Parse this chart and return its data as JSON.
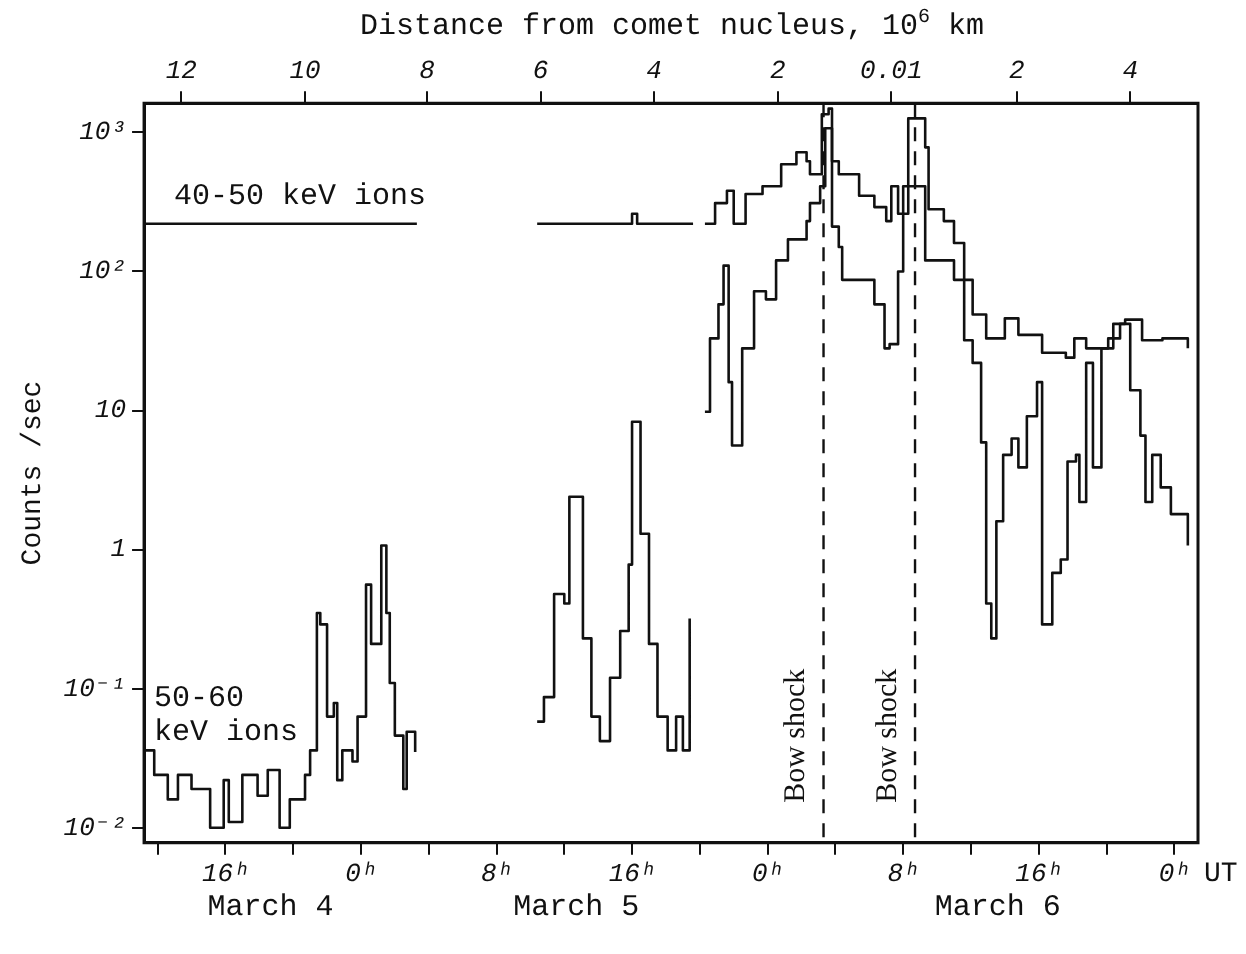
{
  "chart_data": {
    "type": "step",
    "x2label": "Distance from comet nucleus, 10$^{6}$ km",
    "ylabel": "Counts /sec",
    "xlabel": "UT",
    "xlim": [
      "--03-04T11:12",
      "--03-07T01:24"
    ],
    "xticks": [
      {
        "value": "--03-04T12:00",
        "label": null
      },
      {
        "value": "--03-04T16:00",
        "label": "16ʰ"
      },
      {
        "value": "--03-04T20:00",
        "label": null
      },
      {
        "value": "--03-05T00:00",
        "label": "0ʰ"
      },
      {
        "value": "--03-05T04:00",
        "label": null
      },
      {
        "value": "--03-05T08:00",
        "label": "8ʰ"
      },
      {
        "value": "--03-05T12:00",
        "label": null
      },
      {
        "value": "--03-05T16:00",
        "label": "16ʰ"
      },
      {
        "value": "--03-05T20:00",
        "label": null
      },
      {
        "value": "--03-06T00:00",
        "label": "0ʰ"
      },
      {
        "value": "--03-06T04:00",
        "label": null
      },
      {
        "value": "--03-06T08:00",
        "label": "8ʰ"
      },
      {
        "value": "--03-06T12:00",
        "label": null
      },
      {
        "value": "--03-06T16:00",
        "label": "16ʰ"
      },
      {
        "value": "--03-06T20:00",
        "label": null
      },
      {
        "value": "--03-07T00:00",
        "label": "0ʰ"
      }
    ],
    "x2lim": [
      "--03-04T11:12",
      "--03-07T01:24"
    ],
    "x2ticks": [
      {
        "value": "--03-04T13:24",
        "label": "12"
      },
      {
        "value": "--03-04T20:42",
        "label": "10"
      },
      {
        "value": "--03-05T03:54",
        "label": "8"
      },
      {
        "value": "--03-05T10:36",
        "label": "6"
      },
      {
        "value": "--03-05T17:18",
        "label": "4"
      },
      {
        "value": "--03-06T00:36",
        "label": "2"
      },
      {
        "value": "--03-06T07:18",
        "label": "0.01"
      },
      {
        "value": "--03-06T14:42",
        "label": "2"
      },
      {
        "value": "--03-06T21:24",
        "label": "4"
      }
    ],
    "log": "y",
    "ylim": [
      0.0078,
      1620
    ],
    "yticks": [
      {
        "value": 0.01,
        "label": "10⁻²"
      },
      {
        "value": 0.1,
        "label": "10⁻¹"
      },
      1,
      10,
      {
        "value": 100,
        "label": "10²"
      },
      {
        "value": 1000,
        "label": "10³"
      }
    ],
    "grid": false,
    "legend": false,
    "marker": "none",
    "line_style": "solid",
    "ref_lines": [
      {
        "axis": "x",
        "value": "--03-06T03:18",
        "label": "Bow shock",
        "line_style": "dashed"
      },
      {
        "axis": "x",
        "value": "--03-06T08:42",
        "label": "Bow shock",
        "line_style": "dashed"
      }
    ],
    "annotations": [
      "March 4",
      "March 5",
      "March 6"
    ],
    "series": [
      {
        "name": "40-50 keV ions",
        "color": "#111111",
        "x": [
          "--03-04T11:12",
          "--03-05T03:18",
          "--03-05T06:00",
          "--03-05T10:24",
          "--03-05T16:00",
          "--03-05T16:18",
          "--03-05T19:36",
          "--03-05T20:00",
          "--03-05T20:18",
          "--03-05T20:54",
          "--03-05T21:36",
          "--03-05T22:00",
          "--03-05T22:42",
          "--03-05T23:42",
          "--03-06T00:48",
          "--03-06T01:42",
          "--03-06T02:18",
          "--03-06T02:30",
          "--03-06T03:12",
          "--03-06T03:36",
          "--03-06T03:48",
          "--03-06T04:12",
          "--03-06T05:24",
          "--03-06T06:18",
          "--03-06T07:00",
          "--03-06T07:18",
          "--03-06T07:42",
          "--03-06T08:18",
          "--03-06T09:18",
          "--03-06T09:30",
          "--03-06T10:24",
          "--03-06T11:00",
          "--03-06T11:36",
          "--03-06T12:06",
          "--03-06T12:54",
          "--03-06T14:00",
          "--03-06T14:48",
          "--03-06T16:12",
          "--03-06T17:36",
          "--03-06T18:06",
          "--03-06T18:48",
          "--03-06T20:24",
          "--03-06T21:06",
          "--03-06T22:06",
          "--03-06T23:18",
          "--03-07T00:48"
        ],
        "values": [
          220,
          220,
          null,
          220,
          260,
          220,
          220,
          null,
          220,
          310,
          380,
          220,
          360,
          410,
          590,
          720,
          620,
          500,
          1350,
          1480,
          620,
          500,
          350,
          290,
          230,
          410,
          260,
          1260,
          780,
          280,
          230,
          160,
          87,
          49,
          33,
          46,
          35,
          26,
          24,
          33,
          28,
          42,
          45,
          32,
          33,
          28
        ]
      },
      {
        "name": "50-60 keV ions",
        "color": "#111111",
        "x": [
          "--03-04T11:12",
          "--03-04T11:48",
          "--03-04T12:36",
          "--03-04T13:12",
          "--03-04T14:00",
          "--03-04T15:06",
          "--03-04T15:54",
          "--03-04T16:12",
          "--03-04T17:00",
          "--03-04T17:54",
          "--03-04T18:30",
          "--03-04T19:12",
          "--03-04T19:48",
          "--03-04T20:42",
          "--03-04T21:00",
          "--03-04T21:24",
          "--03-04T21:36",
          "--03-04T22:00",
          "--03-04T22:24",
          "--03-04T22:36",
          "--03-04T22:54",
          "--03-04T23:30",
          "--03-04T23:48",
          "--03-05T00:18",
          "--03-05T00:36",
          "--03-05T01:12",
          "--03-05T01:30",
          "--03-05T01:42",
          "--03-05T02:00",
          "--03-05T02:30",
          "--03-05T02:42",
          "--03-05T03:12",
          "--03-05T06:00",
          "--03-05T10:24",
          "--03-05T10:48",
          "--03-05T11:24",
          "--03-05T12:00",
          "--03-05T12:18",
          "--03-05T12:36",
          "--03-05T13:06",
          "--03-05T13:36",
          "--03-05T14:06",
          "--03-05T14:42",
          "--03-05T15:18",
          "--03-05T15:48",
          "--03-05T16:00",
          "--03-05T16:18",
          "--03-05T16:30",
          "--03-05T17:00",
          "--03-05T17:30",
          "--03-05T18:06",
          "--03-05T18:36",
          "--03-05T19:00",
          "--03-05T19:24",
          "--03-05T19:54",
          "--03-05T20:18",
          "--03-05T20:36",
          "--03-05T21:06",
          "--03-05T21:24",
          "--03-05T21:42",
          "--03-05T21:54",
          "--03-05T22:30",
          "--03-05T23:12",
          "--03-05T23:54",
          "--03-06T00:30",
          "--03-06T01:12",
          "--03-06T02:18",
          "--03-06T02:30",
          "--03-06T03:06",
          "--03-06T03:24",
          "--03-06T03:48",
          "--03-06T04:12",
          "--03-06T04:24",
          "--03-06T05:30",
          "--03-06T06:18",
          "--03-06T06:54",
          "--03-06T07:12",
          "--03-06T07:42",
          "--03-06T08:00",
          "--03-06T09:18",
          "--03-06T10:24",
          "--03-06T11:00",
          "--03-06T11:36",
          "--03-06T12:06",
          "--03-06T12:36",
          "--03-06T12:54",
          "--03-06T13:12",
          "--03-06T13:30",
          "--03-06T13:54",
          "--03-06T14:24",
          "--03-06T14:48",
          "--03-06T15:18",
          "--03-06T15:54",
          "--03-06T16:12",
          "--03-06T16:48",
          "--03-06T17:18",
          "--03-06T17:42",
          "--03-06T18:12",
          "--03-06T18:24",
          "--03-06T18:48",
          "--03-06T19:12",
          "--03-06T19:42",
          "--03-06T20:06",
          "--03-06T20:48",
          "--03-06T21:24",
          "--03-06T22:00",
          "--03-06T22:18",
          "--03-06T22:42",
          "--03-06T23:12",
          "--03-06T23:48",
          "--03-07T00:48"
        ],
        "values": [
          0.036,
          0.024,
          0.016,
          0.024,
          0.019,
          0.01,
          0.022,
          0.011,
          0.024,
          0.017,
          0.026,
          0.01,
          0.016,
          0.024,
          0.036,
          0.35,
          0.29,
          0.063,
          0.079,
          0.022,
          0.036,
          0.03,
          0.063,
          0.56,
          0.21,
          1.07,
          0.35,
          0.11,
          0.046,
          0.019,
          0.049,
          0.035,
          null,
          0.058,
          0.087,
          0.48,
          0.41,
          2.4,
          2.4,
          0.23,
          0.063,
          0.042,
          0.12,
          0.26,
          0.78,
          8.3,
          8.3,
          1.3,
          0.21,
          0.063,
          0.036,
          0.063,
          0.036,
          0.32,
          null,
          9.8,
          33,
          58,
          110,
          16,
          5.6,
          28,
          72,
          63,
          120,
          170,
          230,
          310,
          410,
          1070,
          210,
          150,
          87,
          87,
          58,
          28,
          30,
          100,
          410,
          120,
          120,
          87,
          32,
          22,
          5.9,
          0.41,
          0.23,
          1.6,
          4.8,
          6.3,
          3.9,
          9.1,
          16,
          0.29,
          0.68,
          0.85,
          4.3,
          4.8,
          2.2,
          22,
          3.9,
          28,
          33,
          42,
          14,
          6.6,
          2.2,
          4.8,
          2.8,
          1.8,
          1.07
        ]
      }
    ]
  }
}
